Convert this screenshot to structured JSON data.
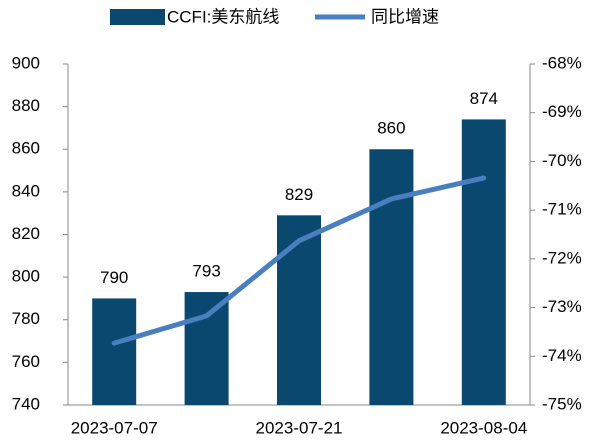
{
  "chart_data": {
    "type": "bar",
    "categories": [
      "2023-07-07",
      null,
      "2023-07-21",
      null,
      "2023-08-04"
    ],
    "series": [
      {
        "name": "CCFI:美东航线",
        "type": "bar",
        "color": "#0b4870",
        "values": [
          790,
          793,
          829,
          860,
          874
        ]
      },
      {
        "name": "同比增速",
        "type": "line",
        "axis": "y2",
        "color": "#4a7fbf",
        "values": [
          -73.73,
          -73.17,
          -71.63,
          -70.77,
          -70.34
        ]
      }
    ],
    "ylim": [
      740,
      900
    ],
    "yticks": [
      740,
      760,
      780,
      800,
      820,
      840,
      860,
      880,
      900
    ],
    "y2lim": [
      -75,
      -68
    ],
    "y2ticks": [
      {
        "value": -75,
        "label": "-75%"
      },
      {
        "value": -74,
        "label": "-74%"
      },
      {
        "value": -73,
        "label": "-73%"
      },
      {
        "value": -72,
        "label": "-72%"
      },
      {
        "value": -71,
        "label": "-71%"
      },
      {
        "value": -70,
        "label": "-70%"
      },
      {
        "value": -69,
        "label": "-69%"
      },
      {
        "value": -68,
        "label": "-68%"
      }
    ],
    "grid": false,
    "legend": "top"
  }
}
